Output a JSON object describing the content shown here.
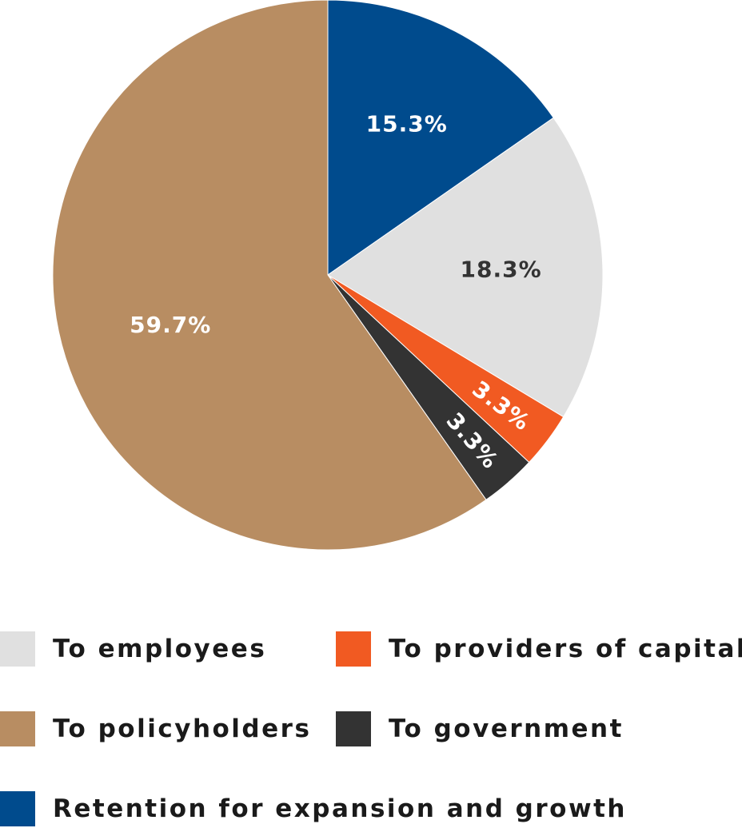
{
  "chart_data": {
    "type": "pie",
    "title": "",
    "slices": [
      {
        "name": "Retention for expansion and growth",
        "value": 15.3,
        "label": "15.3%",
        "color": "#004b8d",
        "label_color": "#ffffff"
      },
      {
        "name": "To employees",
        "value": 18.3,
        "label": "18.3%",
        "color": "#e0e0e0",
        "label_color": "#333333"
      },
      {
        "name": "To providers of capital",
        "value": 3.3,
        "label": "3.3%",
        "color": "#f15a22",
        "label_color": "#ffffff"
      },
      {
        "name": "To government",
        "value": 3.3,
        "label": "3.3%",
        "color": "#333333",
        "label_color": "#ffffff"
      },
      {
        "name": "To policyholders",
        "value": 59.7,
        "label": "59.7%",
        "color": "#b88d62",
        "label_color": "#ffffff"
      }
    ],
    "legend_placement": "bottom"
  },
  "legend": [
    {
      "label": "To employees",
      "color": "#e0e0e0"
    },
    {
      "label": "To providers of capital",
      "color": "#f15a22"
    },
    {
      "label": "To policyholders",
      "color": "#b88d62"
    },
    {
      "label": "To government",
      "color": "#333333"
    },
    {
      "label": "Retention for expansion and growth",
      "color": "#004b8d"
    }
  ]
}
